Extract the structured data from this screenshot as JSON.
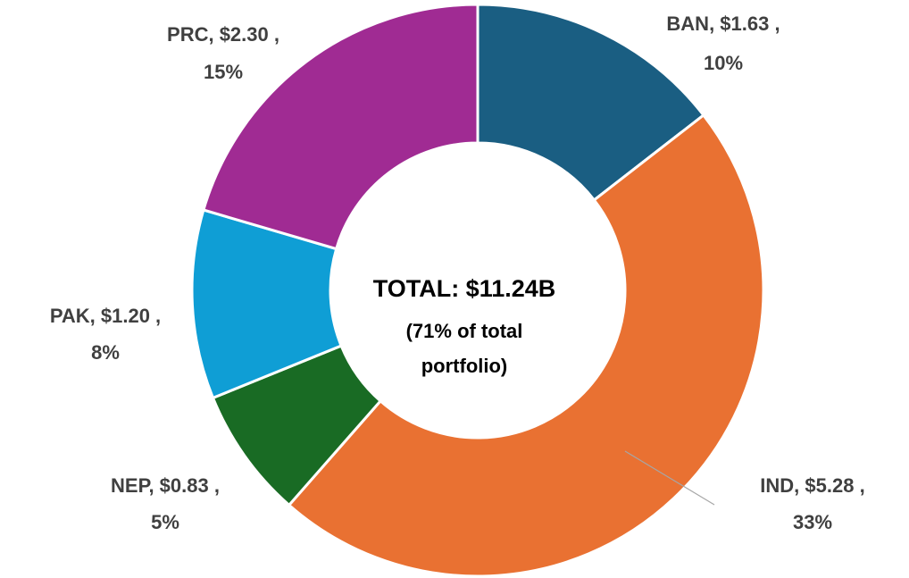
{
  "chart_data": {
    "type": "donut",
    "values": [
      1.63,
      5.28,
      0.83,
      1.2,
      2.3
    ],
    "value_labels": [
      "BAN, $1.63 ,",
      "IND, $5.28 ,",
      "NEP, $0.83 ,",
      "PAK, $1.20 ,",
      "PRC, $2.30 ,"
    ],
    "percent_labels": [
      "10%",
      "33%",
      "5%",
      "8%",
      "15%"
    ],
    "colors": [
      "#1a5e82",
      "#e97132",
      "#196b24",
      "#0f9ed5",
      "#a02b93"
    ],
    "center_text": [
      "TOTAL: $11.24B",
      "(71% of total",
      "portfolio)"
    ]
  }
}
